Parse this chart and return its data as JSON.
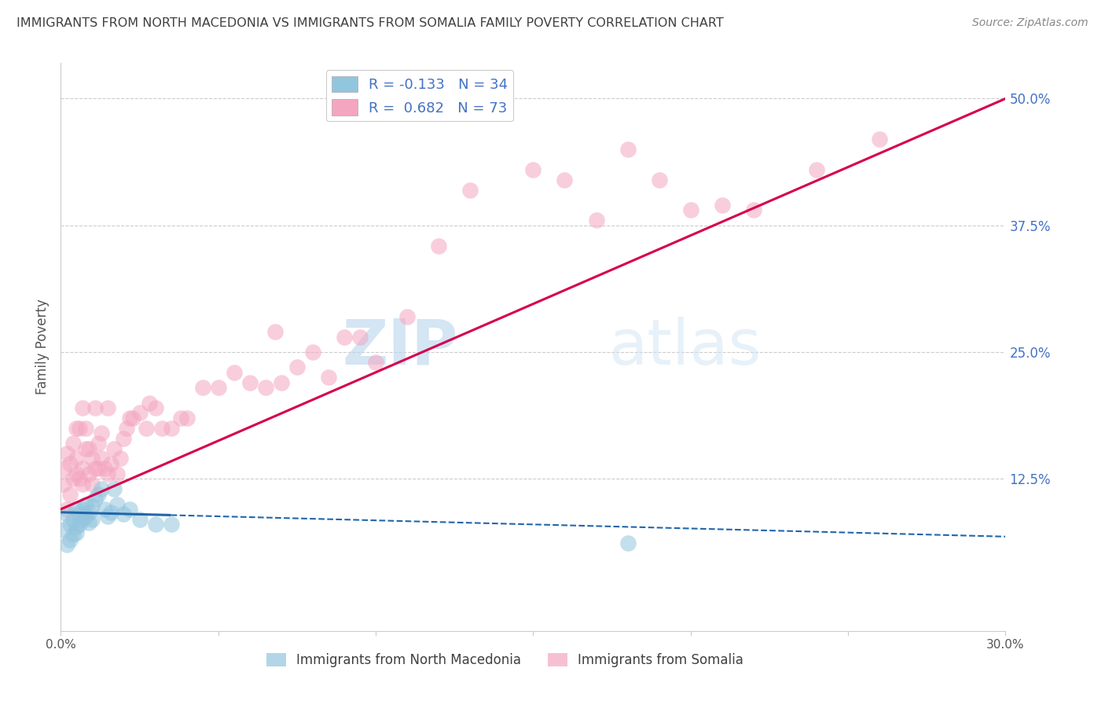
{
  "title": "IMMIGRANTS FROM NORTH MACEDONIA VS IMMIGRANTS FROM SOMALIA FAMILY POVERTY CORRELATION CHART",
  "source": "Source: ZipAtlas.com",
  "ylabel": "Family Poverty",
  "ytick_labels": [
    "12.5%",
    "25.0%",
    "37.5%",
    "50.0%"
  ],
  "ytick_values": [
    0.125,
    0.25,
    0.375,
    0.5
  ],
  "xlim": [
    0.0,
    0.3
  ],
  "ylim": [
    -0.025,
    0.535
  ],
  "legend_r_blue": "-0.133",
  "legend_n_blue": "34",
  "legend_r_pink": "0.682",
  "legend_n_pink": "73",
  "legend_label_blue": "Immigrants from North Macedonia",
  "legend_label_pink": "Immigrants from Somalia",
  "watermark_zip": "ZIP",
  "watermark_atlas": "atlas",
  "color_blue": "#92c5de",
  "color_pink": "#f4a6c0",
  "color_blue_line": "#2166ac",
  "color_pink_line": "#d6004c",
  "color_ytick": "#4472c4",
  "color_title": "#404040",
  "color_source": "#888888",
  "color_legend_text": "#4472c4",
  "color_legend_n": "#404040",
  "scatter_blue_x": [
    0.001,
    0.002,
    0.002,
    0.003,
    0.003,
    0.004,
    0.004,
    0.005,
    0.005,
    0.005,
    0.006,
    0.006,
    0.007,
    0.007,
    0.008,
    0.008,
    0.009,
    0.009,
    0.01,
    0.01,
    0.011,
    0.012,
    0.013,
    0.014,
    0.015,
    0.016,
    0.017,
    0.018,
    0.02,
    0.022,
    0.025,
    0.03,
    0.035,
    0.18
  ],
  "scatter_blue_y": [
    0.075,
    0.06,
    0.09,
    0.065,
    0.08,
    0.07,
    0.085,
    0.072,
    0.078,
    0.095,
    0.08,
    0.09,
    0.085,
    0.095,
    0.088,
    0.1,
    0.092,
    0.082,
    0.098,
    0.085,
    0.105,
    0.11,
    0.115,
    0.095,
    0.088,
    0.092,
    0.115,
    0.1,
    0.09,
    0.095,
    0.085,
    0.08,
    0.08,
    0.062
  ],
  "scatter_pink_x": [
    0.001,
    0.001,
    0.002,
    0.002,
    0.003,
    0.003,
    0.004,
    0.004,
    0.005,
    0.005,
    0.005,
    0.006,
    0.006,
    0.007,
    0.007,
    0.007,
    0.008,
    0.008,
    0.009,
    0.009,
    0.01,
    0.01,
    0.011,
    0.011,
    0.012,
    0.012,
    0.013,
    0.013,
    0.014,
    0.015,
    0.015,
    0.016,
    0.017,
    0.018,
    0.019,
    0.02,
    0.021,
    0.022,
    0.023,
    0.025,
    0.027,
    0.028,
    0.03,
    0.032,
    0.035,
    0.038,
    0.04,
    0.045,
    0.05,
    0.055,
    0.06,
    0.065,
    0.068,
    0.07,
    0.075,
    0.08,
    0.085,
    0.09,
    0.095,
    0.1,
    0.11,
    0.12,
    0.13,
    0.15,
    0.16,
    0.17,
    0.18,
    0.19,
    0.2,
    0.21,
    0.22,
    0.24,
    0.26
  ],
  "scatter_pink_y": [
    0.12,
    0.135,
    0.095,
    0.15,
    0.11,
    0.14,
    0.125,
    0.16,
    0.13,
    0.145,
    0.175,
    0.125,
    0.175,
    0.12,
    0.135,
    0.195,
    0.155,
    0.175,
    0.13,
    0.155,
    0.12,
    0.145,
    0.135,
    0.195,
    0.135,
    0.16,
    0.145,
    0.17,
    0.135,
    0.13,
    0.195,
    0.14,
    0.155,
    0.13,
    0.145,
    0.165,
    0.175,
    0.185,
    0.185,
    0.19,
    0.175,
    0.2,
    0.195,
    0.175,
    0.175,
    0.185,
    0.185,
    0.215,
    0.215,
    0.23,
    0.22,
    0.215,
    0.27,
    0.22,
    0.235,
    0.25,
    0.225,
    0.265,
    0.265,
    0.24,
    0.285,
    0.355,
    0.41,
    0.43,
    0.42,
    0.38,
    0.45,
    0.42,
    0.39,
    0.395,
    0.39,
    0.43,
    0.46
  ]
}
